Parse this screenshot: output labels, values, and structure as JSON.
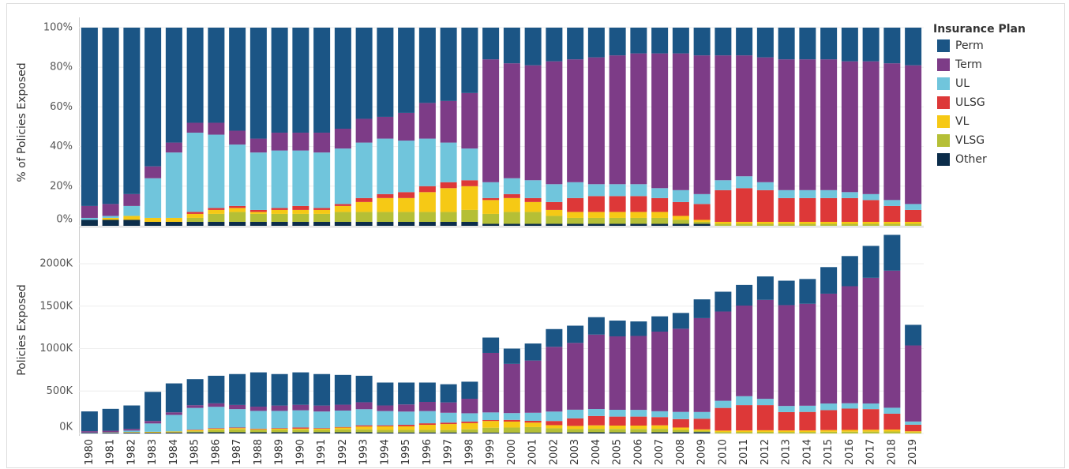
{
  "chart_data": [
    {
      "type": "bar",
      "stacked": true,
      "ylabel": "% of Policies Exposed",
      "legend_title": "Insurance Plan",
      "legend": "right",
      "ylim": [
        0,
        100
      ],
      "yticks": [
        {
          "value": 0,
          "label": "0%"
        },
        {
          "value": 20,
          "label": "20%"
        },
        {
          "value": 40,
          "label": "40%"
        },
        {
          "value": 60,
          "label": "60%"
        },
        {
          "value": 80,
          "label": "80%"
        },
        {
          "value": 100,
          "label": "100%"
        }
      ],
      "grid": true,
      "series": [
        {
          "name": "Perm",
          "color": "#1b5585",
          "values": [
            90,
            89,
            84,
            70,
            58,
            48,
            48,
            52,
            56,
            53,
            53,
            53,
            51,
            46,
            45,
            43,
            38,
            37,
            33,
            16,
            18,
            19,
            17,
            16,
            15,
            14,
            13,
            13,
            13,
            14,
            14,
            14,
            15,
            16,
            16,
            16,
            17,
            17,
            18,
            19
          ]
        },
        {
          "name": "Term",
          "color": "#7d3c87",
          "values": [
            6,
            6,
            6,
            6,
            5,
            5,
            6,
            7,
            7,
            9,
            9,
            10,
            10,
            12,
            11,
            14,
            18,
            21,
            28,
            62,
            58,
            58,
            62,
            62,
            64,
            65,
            66,
            68,
            69,
            70,
            63,
            61,
            63,
            66,
            66,
            66,
            66,
            67,
            69,
            70
          ]
        },
        {
          "name": "UL",
          "color": "#70c5dc",
          "values": [
            1,
            1,
            5,
            20,
            33,
            40,
            37,
            31,
            29,
            29,
            28,
            28,
            28,
            28,
            28,
            26,
            24,
            20,
            16,
            8,
            8,
            9,
            9,
            8,
            6,
            6,
            6,
            5,
            6,
            5,
            5,
            6,
            4,
            4,
            4,
            4,
            3,
            3,
            3,
            3
          ]
        },
        {
          "name": "ULSG",
          "color": "#dd3838",
          "values": [
            0,
            0,
            0,
            0,
            0,
            1,
            1,
            1,
            1,
            1,
            2,
            1,
            1,
            2,
            2,
            3,
            3,
            3,
            3,
            1,
            2,
            2,
            4,
            7,
            8,
            8,
            8,
            7,
            7,
            8,
            16,
            17,
            16,
            12,
            12,
            12,
            12,
            11,
            8,
            6
          ]
        },
        {
          "name": "VL",
          "color": "#f6c915",
          "values": [
            0,
            1,
            2,
            2,
            2,
            2,
            2,
            2,
            1,
            2,
            2,
            2,
            3,
            5,
            7,
            7,
            10,
            12,
            12,
            7,
            7,
            5,
            3,
            3,
            3,
            3,
            3,
            3,
            2,
            1,
            1,
            1,
            1,
            1,
            1,
            1,
            1,
            1,
            1,
            1
          ]
        },
        {
          "name": "VLSG",
          "color": "#b5bf36",
          "values": [
            0,
            0,
            0,
            0,
            0,
            2,
            4,
            5,
            4,
            4,
            4,
            4,
            5,
            5,
            5,
            5,
            5,
            5,
            6,
            5,
            6,
            6,
            4,
            3,
            3,
            3,
            3,
            3,
            2,
            1,
            1,
            1,
            1,
            1,
            1,
            1,
            1,
            1,
            1,
            1
          ]
        },
        {
          "name": "Other",
          "color": "#0c2d4a",
          "values": [
            3,
            3,
            3,
            2,
            2,
            2,
            2,
            2,
            2,
            2,
            2,
            2,
            2,
            2,
            2,
            2,
            2,
            2,
            2,
            1,
            1,
            1,
            1,
            1,
            1,
            1,
            1,
            1,
            1,
            1,
            0,
            0,
            0,
            0,
            0,
            0,
            0,
            0,
            0,
            0
          ]
        }
      ]
    },
    {
      "type": "bar",
      "stacked": true,
      "ylabel": "Policies Exposed",
      "categories": [
        "1980",
        "1981",
        "1982",
        "1983",
        "1984",
        "1985",
        "1986",
        "1987",
        "1988",
        "1989",
        "1990",
        "1991",
        "1992",
        "1993",
        "1994",
        "1995",
        "1996",
        "1997",
        "1998",
        "1999",
        "2000",
        "2001",
        "2002",
        "2003",
        "2004",
        "2005",
        "2006",
        "2007",
        "2008",
        "2009",
        "2010",
        "2011",
        "2012",
        "2013",
        "2014",
        "2015",
        "2016",
        "2017",
        "2018",
        "2019"
      ],
      "ylim": [
        0,
        2400000
      ],
      "yticks": [
        {
          "value": 0,
          "label": "0K"
        },
        {
          "value": 500000,
          "label": "500K"
        },
        {
          "value": 1000000,
          "label": "1000K"
        },
        {
          "value": 1500000,
          "label": "1500K"
        },
        {
          "value": 2000000,
          "label": "2000K"
        }
      ],
      "grid": true,
      "series": [
        {
          "color": "#1b5585",
          "values": [
            233000,
            258000,
            276000,
            343000,
            341000,
            307000,
            325000,
            364000,
            404000,
            371000,
            382000,
            371000,
            351000,
            312000,
            270000,
            258000,
            228000,
            214000,
            201000,
            181000,
            180000,
            201000,
            209000,
            203000,
            205000,
            186000,
            171000,
            180000,
            186000,
            221000,
            233000,
            243000,
            276000,
            288000,
            292000,
            313000,
            355000,
            376000,
            422000,
            243000
          ]
        },
        {
          "color": "#7d3c87",
          "values": [
            16000,
            17000,
            20000,
            29000,
            30000,
            32000,
            41000,
            49000,
            50000,
            63000,
            65000,
            70000,
            69000,
            82000,
            66000,
            84000,
            108000,
            122000,
            171000,
            701000,
            580000,
            615000,
            763000,
            787000,
            877000,
            865000,
            871000,
            938000,
            980000,
            1106000,
            1052000,
            1068000,
            1166000,
            1188000,
            1201000,
            1294000,
            1379000,
            1481000,
            1615000,
            896000
          ]
        },
        {
          "color": "#70c5dc",
          "values": [
            3000,
            3000,
            17000,
            98000,
            195000,
            256000,
            252000,
            217000,
            209000,
            203000,
            202000,
            196000,
            193000,
            190000,
            168000,
            156000,
            144000,
            116000,
            98000,
            90000,
            80000,
            95000,
            111000,
            102000,
            82000,
            80000,
            79000,
            69000,
            85000,
            79000,
            84000,
            105000,
            74000,
            72000,
            73000,
            78000,
            63000,
            66000,
            70000,
            38000
          ]
        },
        {
          "color": "#dd3838",
          "values": [
            0,
            0,
            0,
            0,
            0,
            6000,
            7000,
            7000,
            7000,
            7000,
            14000,
            7000,
            7000,
            14000,
            12000,
            18000,
            18000,
            17000,
            18000,
            11000,
            20000,
            21000,
            49000,
            89000,
            110000,
            106000,
            106000,
            97000,
            99000,
            126000,
            267000,
            298000,
            296000,
            216000,
            218000,
            235000,
            251000,
            243000,
            187000,
            77000
          ]
        },
        {
          "color": "#f6c915",
          "values": [
            0,
            3000,
            7000,
            10000,
            12000,
            13000,
            14000,
            14000,
            7000,
            14000,
            14000,
            14000,
            21000,
            34000,
            42000,
            42000,
            60000,
            70000,
            73000,
            79000,
            70000,
            53000,
            37000,
            38000,
            41000,
            40000,
            40000,
            41000,
            28000,
            16000,
            17000,
            18000,
            19000,
            18000,
            18000,
            20000,
            21000,
            22000,
            23000,
            13000
          ]
        },
        {
          "color": "#b5bf36",
          "values": [
            0,
            0,
            0,
            0,
            0,
            13000,
            27000,
            35000,
            29000,
            28000,
            29000,
            28000,
            35000,
            34000,
            30000,
            30000,
            30000,
            29000,
            37000,
            57000,
            60000,
            64000,
            49000,
            38000,
            41000,
            40000,
            40000,
            41000,
            28000,
            16000,
            17000,
            18000,
            19000,
            18000,
            18000,
            20000,
            21000,
            22000,
            23000,
            13000
          ]
        },
        {
          "color": "#0c2d4a",
          "values": [
            8000,
            9000,
            10000,
            10000,
            12000,
            13000,
            14000,
            14000,
            14000,
            14000,
            14000,
            14000,
            14000,
            14000,
            12000,
            12000,
            12000,
            12000,
            12000,
            11000,
            10000,
            11000,
            12000,
            13000,
            14000,
            13000,
            13000,
            14000,
            14000,
            16000,
            0,
            0,
            0,
            0,
            0,
            0,
            0,
            0,
            0,
            0
          ]
        }
      ]
    }
  ]
}
